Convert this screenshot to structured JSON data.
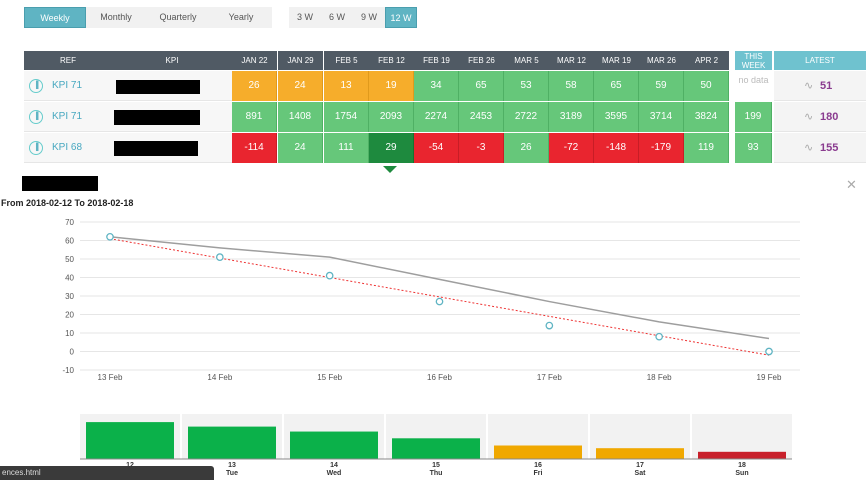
{
  "periods": [
    {
      "label": "Weekly",
      "active": true
    },
    {
      "label": "Monthly",
      "active": false
    },
    {
      "label": "Quarterly",
      "active": false
    },
    {
      "label": "Yearly",
      "active": false
    }
  ],
  "weeks": [
    {
      "label": "3 W",
      "active": false
    },
    {
      "label": "6 W",
      "active": false
    },
    {
      "label": "9 W",
      "active": false
    },
    {
      "label": "12 W",
      "active": true
    }
  ],
  "table": {
    "headers": {
      "ref": "REF",
      "kpi": "KPI",
      "weeks": [
        "JAN 22",
        "JAN 29",
        "FEB 5",
        "FEB 12",
        "FEB 19",
        "FEB 26",
        "MAR 5",
        "MAR 12",
        "MAR 19",
        "MAR 26",
        "APR 2"
      ],
      "this_week": "THIS WEEK",
      "latest": "LATEST"
    },
    "rows": [
      {
        "ref": "KPI 71",
        "values": [
          "26",
          "24",
          "13",
          "19",
          "34",
          "65",
          "53",
          "58",
          "65",
          "59",
          "50"
        ],
        "colors": [
          "o",
          "o",
          "o",
          "o",
          "g",
          "g",
          "g",
          "g",
          "g",
          "g",
          "g"
        ],
        "this_week": "no data",
        "this_week_color": "nd",
        "latest": "51"
      },
      {
        "ref": "KPI 71",
        "values": [
          "891",
          "1408",
          "1754",
          "2093",
          "2274",
          "2453",
          "2722",
          "3189",
          "3595",
          "3714",
          "3824"
        ],
        "colors": [
          "g",
          "g",
          "g",
          "g",
          "g",
          "g",
          "g",
          "g",
          "g",
          "g",
          "g"
        ],
        "this_week": "199",
        "this_week_color": "g",
        "latest": "180"
      },
      {
        "ref": "KPI 68",
        "values": [
          "-114",
          "24",
          "111",
          "29",
          "-54",
          "-3",
          "26",
          "-72",
          "-148",
          "-179",
          "119"
        ],
        "colors": [
          "r",
          "g",
          "g",
          "dg",
          "r",
          "r",
          "g",
          "r",
          "r",
          "r",
          "g"
        ],
        "this_week": "93",
        "this_week_color": "g",
        "latest": "155"
      }
    ]
  },
  "range_title": "From 2018-02-12 To 2018-02-18",
  "chart_data": {
    "type": "line",
    "x": [
      "13 Feb",
      "14 Feb",
      "15 Feb",
      "16 Feb",
      "17 Feb",
      "18 Feb",
      "19 Feb"
    ],
    "series": [
      {
        "values": [
          62,
          56,
          51,
          39,
          27,
          16,
          7
        ],
        "color": "#9e9e9e",
        "style": "solid"
      },
      {
        "values": [
          62,
          51,
          41,
          27,
          14,
          8,
          0
        ],
        "color": "#5fb4c3",
        "style": "points"
      },
      {
        "values": [
          61,
          50.5,
          40,
          29.5,
          19,
          8.5,
          -2
        ],
        "color": "#e33",
        "style": "dotted"
      }
    ],
    "ylim": [
      -10,
      70
    ],
    "yticks": [
      -10,
      0,
      10,
      20,
      30,
      40,
      50,
      60,
      70
    ],
    "grid": true
  },
  "bar_data": {
    "type": "bar",
    "categories": [
      {
        "num": "12",
        "day": ""
      },
      {
        "num": "13",
        "day": "Tue"
      },
      {
        "num": "14",
        "day": "Wed"
      },
      {
        "num": "15",
        "day": "Thu"
      },
      {
        "num": "16",
        "day": "Fri"
      },
      {
        "num": "17",
        "day": "Sat"
      },
      {
        "num": "18",
        "day": "Sun"
      }
    ],
    "values": [
      0.82,
      0.72,
      0.61,
      0.46,
      0.3,
      0.24,
      0.16
    ],
    "colors": [
      "#0bb14a",
      "#0bb14a",
      "#0bb14a",
      "#0bb14a",
      "#f0a800",
      "#f0a800",
      "#c8202b"
    ]
  },
  "status_bar": "ences.html"
}
